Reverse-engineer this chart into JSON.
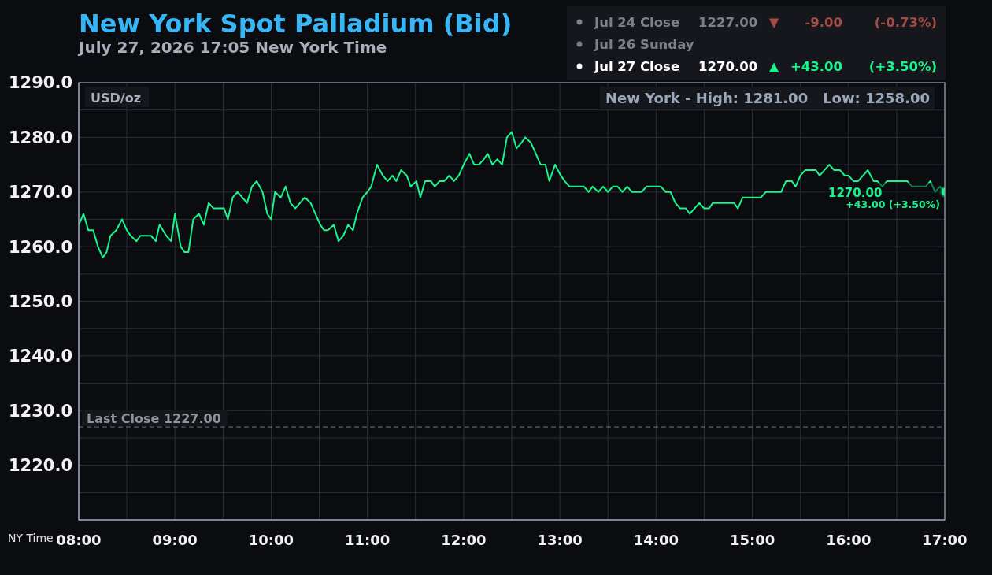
{
  "chart_data": {
    "type": "line",
    "title": "New York Spot Palladium (Bid)",
    "subtitle": "July 27, 2026 17:05 New York Time",
    "xlabel": "NY Time",
    "ylabel": "USD/oz",
    "x": [
      8.0,
      8.05,
      8.1,
      8.15,
      8.2,
      8.25,
      8.29,
      8.33,
      8.39,
      8.45,
      8.5,
      8.54,
      8.6,
      8.64,
      8.75,
      8.8,
      8.84,
      8.91,
      8.96,
      9.0,
      9.06,
      9.1,
      9.14,
      9.19,
      9.25,
      9.3,
      9.35,
      9.4,
      9.51,
      9.55,
      9.6,
      9.65,
      9.75,
      9.8,
      9.85,
      9.91,
      9.96,
      10.0,
      10.04,
      10.1,
      10.15,
      10.2,
      10.25,
      10.35,
      10.41,
      10.46,
      10.51,
      10.55,
      10.59,
      10.65,
      10.7,
      10.75,
      10.8,
      10.85,
      10.89,
      10.95,
      11.0,
      11.04,
      11.1,
      11.16,
      11.21,
      11.26,
      11.3,
      11.35,
      11.41,
      11.45,
      11.51,
      11.55,
      11.6,
      11.66,
      11.7,
      11.75,
      11.8,
      11.85,
      11.9,
      11.95,
      12.0,
      12.06,
      12.11,
      12.16,
      12.21,
      12.25,
      12.3,
      12.35,
      12.4,
      12.45,
      12.5,
      12.55,
      12.6,
      12.64,
      12.7,
      12.75,
      12.8,
      12.85,
      12.89,
      12.95,
      13.01,
      13.05,
      13.1,
      13.25,
      13.3,
      13.34,
      13.4,
      13.45,
      13.5,
      13.55,
      13.6,
      13.65,
      13.7,
      13.75,
      13.85,
      13.9,
      14.05,
      14.1,
      14.15,
      14.2,
      14.25,
      14.31,
      14.35,
      14.4,
      14.45,
      14.5,
      14.55,
      14.59,
      14.81,
      14.85,
      14.9,
      15.09,
      15.14,
      15.3,
      15.35,
      15.41,
      15.45,
      15.5,
      15.55,
      15.66,
      15.7,
      15.8,
      15.85,
      15.91,
      15.96,
      16.0,
      16.05,
      16.1,
      16.2,
      16.26,
      16.3,
      16.35,
      16.4,
      16.61,
      16.66,
      16.8,
      16.85,
      16.9,
      16.95,
      17.0
    ],
    "series": [
      {
        "color": "#19f58c",
        "values": [
          1264,
          1266,
          1263,
          1263,
          1260,
          1258,
          1259,
          1262,
          1263,
          1265,
          1263,
          1262,
          1261,
          1262,
          1262,
          1261,
          1264,
          1262,
          1261,
          1266,
          1260,
          1259,
          1259,
          1265,
          1266,
          1264,
          1268,
          1267,
          1267,
          1265,
          1269,
          1270,
          1268,
          1271,
          1272,
          1270,
          1266,
          1265,
          1270,
          1269,
          1271,
          1268,
          1267,
          1269,
          1268,
          1266,
          1264,
          1263,
          1263,
          1264,
          1261,
          1262,
          1264,
          1263,
          1266,
          1269,
          1270,
          1271,
          1275,
          1273,
          1272,
          1273,
          1272,
          1274,
          1273,
          1271,
          1272,
          1269,
          1272,
          1272,
          1271,
          1272,
          1272,
          1273,
          1272,
          1273,
          1275,
          1277,
          1275,
          1275,
          1276,
          1277,
          1275,
          1276,
          1275,
          1280,
          1281,
          1278,
          1279,
          1280,
          1279,
          1277,
          1275,
          1275,
          1272,
          1275,
          1273,
          1272,
          1271,
          1271,
          1270,
          1271,
          1270,
          1271,
          1270,
          1271,
          1271,
          1270,
          1271,
          1270,
          1270,
          1271,
          1271,
          1270,
          1270,
          1268,
          1267,
          1267,
          1266,
          1267,
          1268,
          1267,
          1267,
          1268,
          1268,
          1267,
          1269,
          1269,
          1270,
          1270,
          1272,
          1272,
          1271,
          1273,
          1274,
          1274,
          1273,
          1275,
          1274,
          1274,
          1273,
          1273,
          1272,
          1272,
          1274,
          1272,
          1272,
          1271,
          1272,
          1272,
          1271,
          1271,
          1272,
          1270,
          1271,
          1270
        ]
      },
      {
        "type": "scatter",
        "color": "#19f58c",
        "marker": "circle",
        "x": [
          17
        ],
        "values": [
          1270
        ]
      }
    ],
    "xlim": [
      8,
      17
    ],
    "xticks": [
      {
        "value": 8,
        "label": "08:00"
      },
      {
        "value": 8.5,
        "label": null
      },
      {
        "value": 9,
        "label": "09:00"
      },
      {
        "value": 9.5,
        "label": null
      },
      {
        "value": 10,
        "label": "10:00"
      },
      {
        "value": 10.5,
        "label": null
      },
      {
        "value": 11,
        "label": "11:00"
      },
      {
        "value": 11.5,
        "label": null
      },
      {
        "value": 12,
        "label": "12:00"
      },
      {
        "value": 12.5,
        "label": null
      },
      {
        "value": 13,
        "label": "13:00"
      },
      {
        "value": 13.5,
        "label": null
      },
      {
        "value": 14,
        "label": "14:00"
      },
      {
        "value": 14.5,
        "label": null
      },
      {
        "value": 15,
        "label": "15:00"
      },
      {
        "value": 15.5,
        "label": null
      },
      {
        "value": 16,
        "label": "16:00"
      },
      {
        "value": 16.5,
        "label": null
      },
      {
        "value": 17,
        "label": "17:00"
      }
    ],
    "ylim": [
      1210,
      1290
    ],
    "yticks": [
      {
        "value": 1215,
        "label": null
      },
      {
        "value": 1220,
        "label": "1220.0"
      },
      {
        "value": 1225,
        "label": null
      },
      {
        "value": 1230,
        "label": "1230.0"
      },
      {
        "value": 1235,
        "label": null
      },
      {
        "value": 1240,
        "label": "1240.0"
      },
      {
        "value": 1245,
        "label": null
      },
      {
        "value": 1250,
        "label": "1250.0"
      },
      {
        "value": 1255,
        "label": null
      },
      {
        "value": 1260,
        "label": "1260.0"
      },
      {
        "value": 1265,
        "label": null
      },
      {
        "value": 1270,
        "label": "1270.0"
      },
      {
        "value": 1275,
        "label": null
      },
      {
        "value": 1280,
        "label": "1280.0"
      },
      {
        "value": 1285,
        "label": null
      },
      {
        "value": 1290,
        "label": "1290.0"
      }
    ],
    "grid": true,
    "marker": "none",
    "ref_lines": [
      {
        "axis": "y",
        "value": 1227,
        "label": "Last Close 1227.00",
        "color": "#6e737d",
        "line_style": "dashed"
      }
    ],
    "annotations": [
      "Jul 24 Close",
      "1227.00",
      "▼",
      "-9.00",
      "(-0.73%)",
      "Jul 26 Sunday",
      "Jul 27 Close",
      "1270.00",
      "▲",
      "+43.00",
      "(+3.50%)",
      "New York - High: 1281.00",
      "Low: 1258.00",
      "1270.00",
      "+43.00 (+3.50%)"
    ]
  }
}
